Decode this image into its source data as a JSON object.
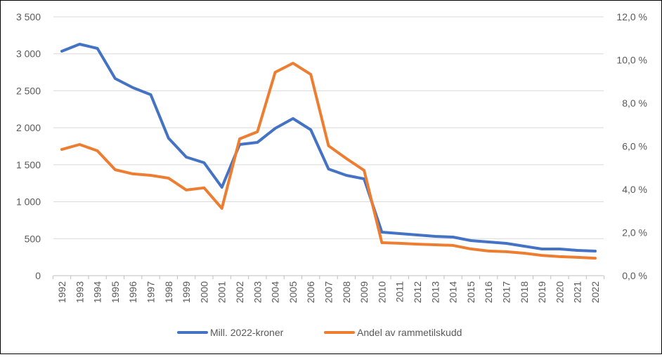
{
  "chart_data": {
    "type": "line",
    "categories": [
      "1992",
      "1993",
      "1994",
      "1995",
      "1996",
      "1997",
      "1998",
      "1999",
      "2000",
      "2001",
      "2002",
      "2003",
      "2004",
      "2005",
      "2006",
      "2007",
      "2008",
      "2009",
      "2010",
      "2011",
      "2012",
      "2013",
      "2014",
      "2015",
      "2016",
      "2017",
      "2018",
      "2019",
      "2020",
      "2021",
      "2022"
    ],
    "series": [
      {
        "name": "Mill. 2022-kroner",
        "axis": "left",
        "color": "#4472C4",
        "values": [
          3035,
          3130,
          3073,
          2665,
          2542,
          2447,
          1859,
          1603,
          1527,
          1195,
          1774,
          1802,
          1992,
          2125,
          1973,
          1442,
          1356,
          1309,
          588,
          569,
          550,
          531,
          522,
          474,
          455,
          436,
          398,
          360,
          360,
          341,
          332
        ]
      },
      {
        "name": "Andel av rammetilskudd",
        "axis": "right",
        "color": "#ED7D31",
        "values": [
          5.85,
          6.08,
          5.79,
          4.91,
          4.72,
          4.65,
          4.52,
          3.97,
          4.07,
          3.12,
          6.34,
          6.67,
          9.43,
          9.85,
          9.33,
          6.02,
          5.43,
          4.88,
          1.53,
          1.5,
          1.46,
          1.43,
          1.4,
          1.24,
          1.14,
          1.11,
          1.04,
          0.94,
          0.88,
          0.85,
          0.81
        ]
      }
    ],
    "y_left": {
      "lim": [
        0,
        3500
      ],
      "ticks": [
        "0",
        "500",
        "1 000",
        "1 500",
        "2 000",
        "2 500",
        "3 000",
        "3 500"
      ]
    },
    "y_right": {
      "lim": [
        0,
        12
      ],
      "unit": "%",
      "ticks": [
        "0,0 %",
        "2,0 %",
        "4,0 %",
        "6,0 %",
        "8,0 %",
        "10,0 %",
        "12,0 %"
      ]
    },
    "grid": true,
    "legend": "bottom"
  }
}
